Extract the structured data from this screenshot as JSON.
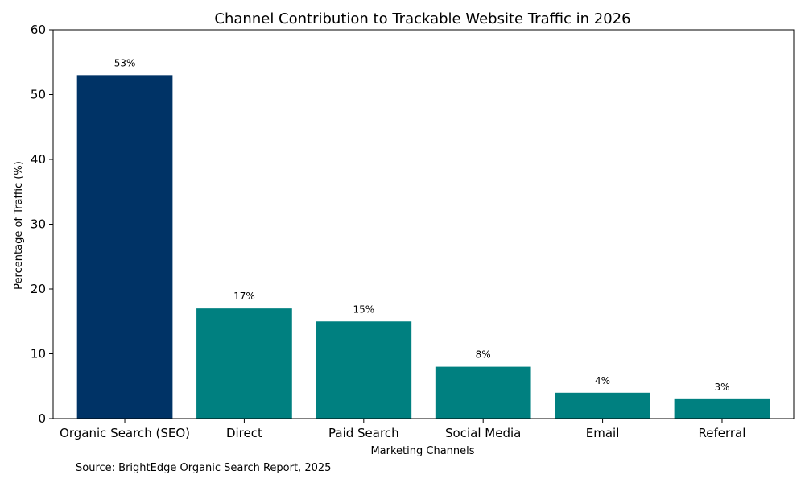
{
  "chart_data": {
    "type": "bar",
    "title": "Channel Contribution to Trackable Website Traffic in 2026",
    "xlabel": "Marketing Channels",
    "ylabel": "Percentage of Traffic (%)",
    "categories": [
      "Organic Search (SEO)",
      "Direct",
      "Paid Search",
      "Social Media",
      "Email",
      "Referral"
    ],
    "values": [
      53,
      17,
      15,
      8,
      4,
      3
    ],
    "data_labels": [
      "53%",
      "17%",
      "15%",
      "8%",
      "4%",
      "3%"
    ],
    "colors": [
      "#003366",
      "#008080",
      "#008080",
      "#008080",
      "#008080",
      "#008080"
    ],
    "ylim": [
      0,
      60
    ],
    "yticks": [
      0,
      10,
      20,
      30,
      40,
      50,
      60
    ],
    "grid": false,
    "legend": "none",
    "source": "Source: BrightEdge Organic Search Report, 2025"
  }
}
